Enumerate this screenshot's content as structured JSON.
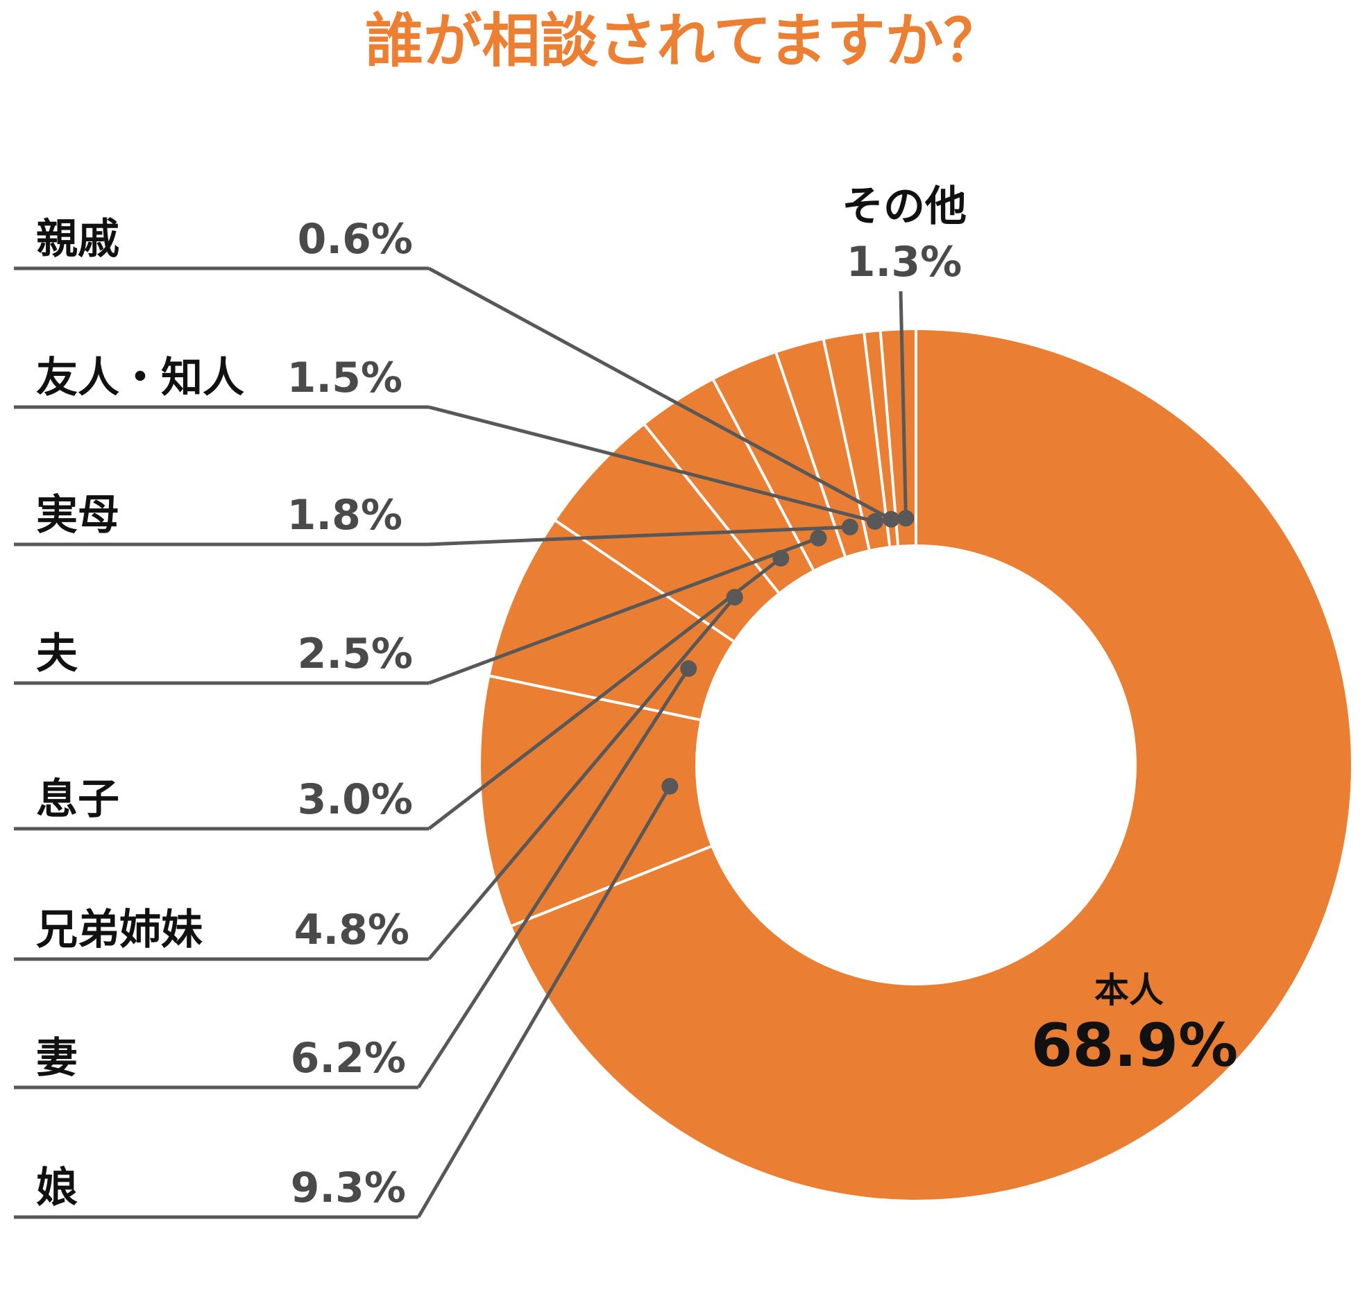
{
  "title": "誰が相談されてますか？",
  "colors": {
    "accent": "#ec7f32",
    "slice": "#ea7e33",
    "separator": "#ffffff",
    "leader": "#585858"
  },
  "chart_data": {
    "type": "pie",
    "variant": "donut",
    "title": "誰が相談されてますか？",
    "unit": "%",
    "slices": [
      {
        "label": "本人",
        "value": 68.9,
        "display": "68.9%"
      },
      {
        "label": "娘",
        "value": 9.3,
        "display": "9.3%"
      },
      {
        "label": "妻",
        "value": 6.2,
        "display": "6.2%"
      },
      {
        "label": "兄弟姉妹",
        "value": 4.8,
        "display": "4.8%"
      },
      {
        "label": "息子",
        "value": 3.0,
        "display": "3.0%"
      },
      {
        "label": "夫",
        "value": 2.5,
        "display": "2.5%"
      },
      {
        "label": "実母",
        "value": 1.8,
        "display": "1.8%"
      },
      {
        "label": "友人・知人",
        "value": 1.5,
        "display": "1.5%"
      },
      {
        "label": "親戚",
        "value": 0.6,
        "display": "0.6%"
      },
      {
        "label": "その他",
        "value": 1.3,
        "display": "1.3%"
      }
    ],
    "legend_side_list": [
      "親戚",
      "友人・知人",
      "実母",
      "夫",
      "息子",
      "兄弟姉妹",
      "妻",
      "娘"
    ]
  }
}
